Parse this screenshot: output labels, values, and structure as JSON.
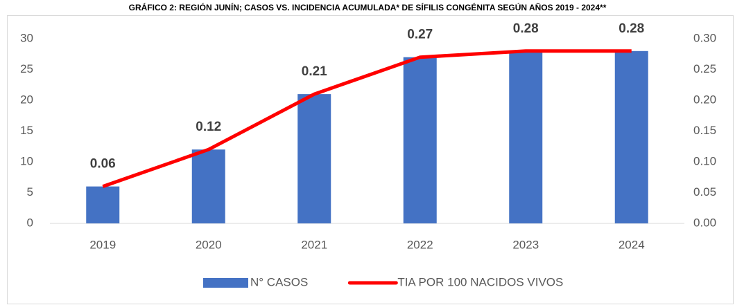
{
  "chart_data": {
    "type": "bar",
    "title": "GRÁFICO 2: REGIÓN JUNÍN; CASOS VS. INCIDENCIA ACUMULADA* DE SÍFILIS CONGÉNITA SEGÚN AÑOS 2019 - 2024**",
    "categories": [
      "2019",
      "2020",
      "2021",
      "2022",
      "2023",
      "2024"
    ],
    "series": [
      {
        "name": "N° CASOS",
        "type": "bar",
        "color": "#4472c4",
        "values": [
          6,
          12,
          21,
          27,
          28,
          28
        ]
      },
      {
        "name": "TIA POR 100 NACIDOS VIVOS",
        "type": "line",
        "axis": "y2",
        "color": "#ff0000",
        "values": [
          0.06,
          0.12,
          0.21,
          0.27,
          0.28,
          0.28
        ]
      }
    ],
    "ylim": [
      0,
      30
    ],
    "yticks": [
      0,
      5,
      10,
      15,
      20,
      25,
      30
    ],
    "y2lim": [
      0,
      0.3
    ],
    "y2ticks": [
      {
        "value": 0,
        "label": "0.00"
      },
      0.05,
      {
        "value": 0.1,
        "label": "0.10"
      },
      0.15,
      {
        "value": 0.2,
        "label": "0.20"
      },
      0.25,
      {
        "value": 0.3,
        "label": "0.30"
      }
    ],
    "legend": "bottom"
  }
}
